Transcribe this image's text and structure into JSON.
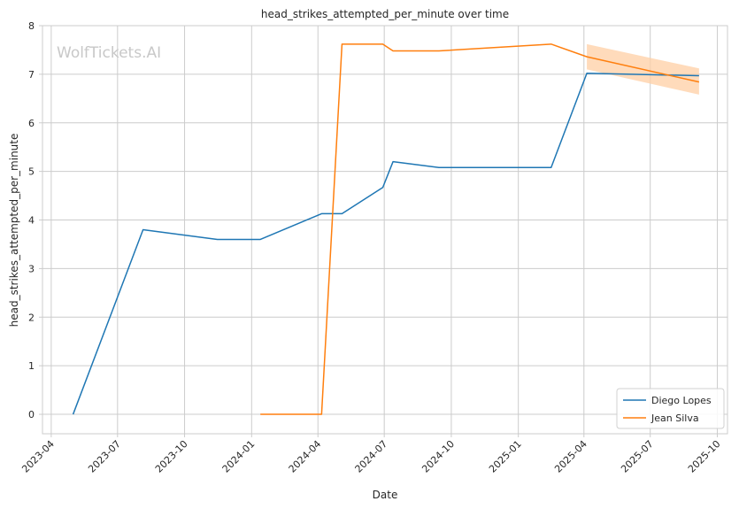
{
  "watermark": "WolfTickets.AI",
  "chart_data": {
    "type": "line",
    "title": "head_strikes_attempted_per_minute over time",
    "xlabel": "Date",
    "ylabel": "head_strikes_attempted_per_minute",
    "xlim": [
      "2023-03-20",
      "2025-10-15"
    ],
    "ylim": [
      -0.4,
      8
    ],
    "x_ticks": [
      "2023-04",
      "2023-07",
      "2023-10",
      "2024-01",
      "2024-04",
      "2024-07",
      "2024-10",
      "2025-01",
      "2025-04",
      "2025-07",
      "2025-10"
    ],
    "y_ticks": [
      0,
      1,
      2,
      3,
      4,
      5,
      6,
      7,
      8
    ],
    "grid": true,
    "legend_position": "lower-right",
    "series": [
      {
        "name": "Diego Lopes",
        "color": "#1f77b4",
        "points": [
          {
            "x": "2023-05-01",
            "y": 0.0
          },
          {
            "x": "2023-08-05",
            "y": 3.8
          },
          {
            "x": "2023-11-15",
            "y": 3.6
          },
          {
            "x": "2024-01-13",
            "y": 3.6
          },
          {
            "x": "2024-04-06",
            "y": 4.13
          },
          {
            "x": "2024-05-04",
            "y": 4.13
          },
          {
            "x": "2024-06-29",
            "y": 4.67
          },
          {
            "x": "2024-07-13",
            "y": 5.2
          },
          {
            "x": "2024-09-14",
            "y": 5.08
          },
          {
            "x": "2025-02-15",
            "y": 5.08
          },
          {
            "x": "2025-04-05",
            "y": 7.02
          },
          {
            "x": "2025-09-06",
            "y": 6.97
          }
        ]
      },
      {
        "name": "Jean Silva",
        "color": "#ff7f0e",
        "band_color": "#ffcfa4",
        "points": [
          {
            "x": "2024-01-13",
            "y": 0.0
          },
          {
            "x": "2024-04-06",
            "y": 0.0
          },
          {
            "x": "2024-05-04",
            "y": 7.62
          },
          {
            "x": "2024-06-29",
            "y": 7.62
          },
          {
            "x": "2024-07-13",
            "y": 7.48
          },
          {
            "x": "2024-09-14",
            "y": 7.48
          },
          {
            "x": "2025-02-15",
            "y": 7.62
          },
          {
            "x": "2025-04-05",
            "y": 7.36
          },
          {
            "x": "2025-09-06",
            "y": 6.84
          }
        ],
        "band": [
          {
            "x": "2025-04-05",
            "low": 7.1,
            "high": 7.62
          },
          {
            "x": "2025-09-06",
            "low": 6.58,
            "high": 7.12
          }
        ]
      }
    ]
  }
}
